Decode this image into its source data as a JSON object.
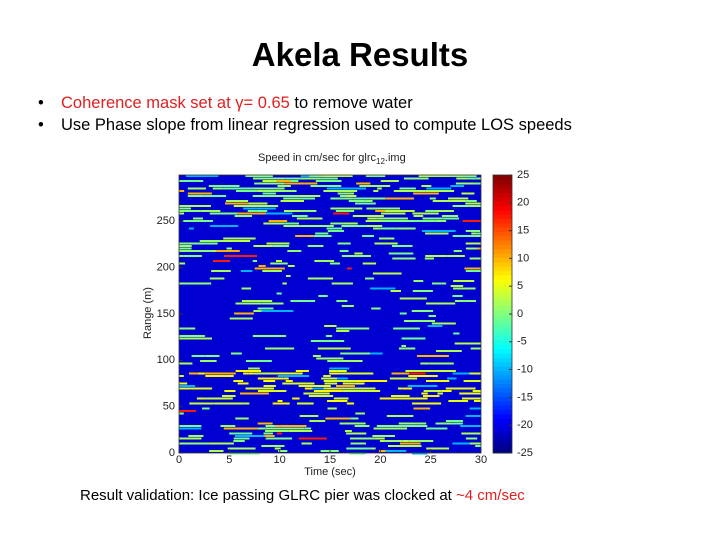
{
  "title": "Akela Results",
  "bullets": [
    [
      "Coherence mask set at γ= 0.65 ",
      "to remove water"
    ],
    [
      "Use Phase slope from linear regression used to compute LOS speeds"
    ]
  ],
  "figure": {
    "title": [
      "Speed in cm/sec for glrc",
      "12",
      ".img"
    ],
    "x_label": "Time (sec)",
    "y_label": "Range (m)",
    "xlim": [
      0,
      30
    ],
    "xticks": [
      0,
      5,
      10,
      15,
      20,
      25,
      30
    ],
    "ylim": [
      0,
      300
    ],
    "yticks": [
      0,
      50,
      100,
      150,
      200,
      250
    ],
    "clim": [
      -25,
      25
    ],
    "cticks": [
      -25,
      -20,
      -15,
      -10,
      -5,
      0,
      5,
      10,
      15,
      20,
      25
    ]
  },
  "caption": [
    "Result validation: Ice passing GLRC pier was clocked at ",
    "~4 cm/sec"
  ]
}
